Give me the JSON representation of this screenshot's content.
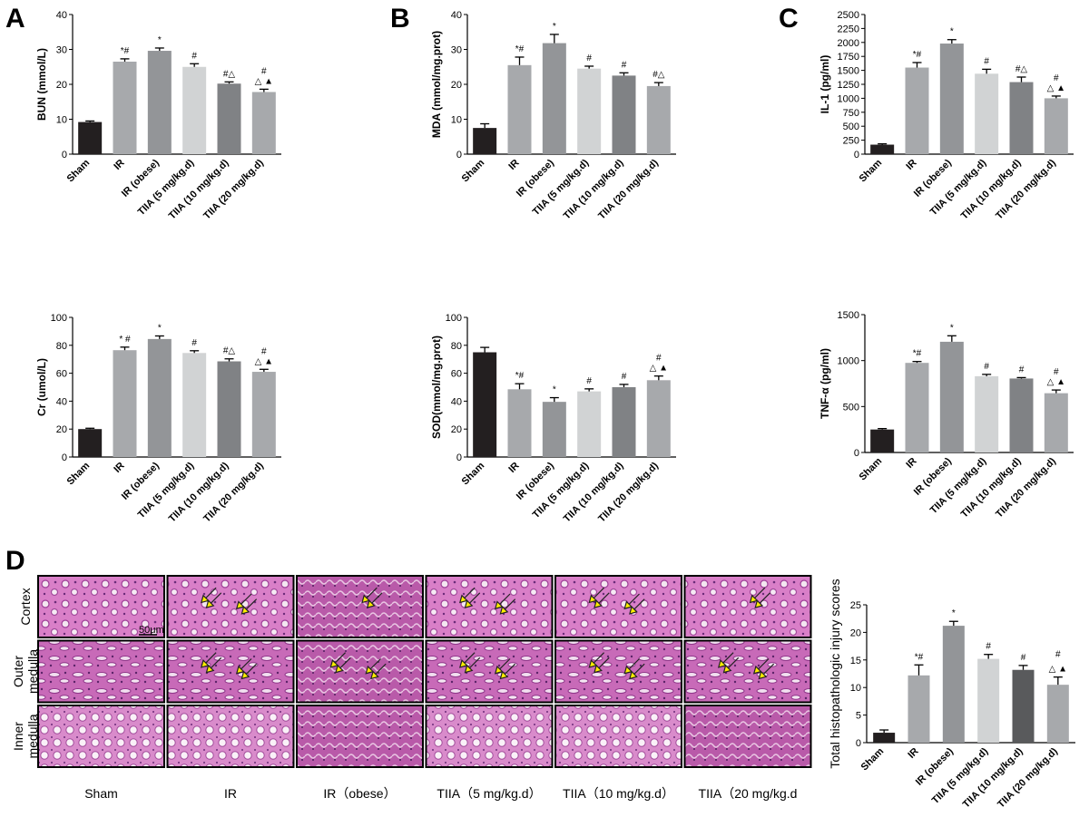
{
  "panel_labels": [
    "A",
    "B",
    "C",
    "D"
  ],
  "chart_data": [
    {
      "id": "bun",
      "type": "bar",
      "ylabel": "BUN (mmol/L)",
      "ylim": [
        0,
        40
      ],
      "yticks": [
        0,
        10,
        20,
        30,
        40
      ],
      "categories": [
        "Sham",
        "IR",
        "IR (obese)",
        "TIIA (5 mg/kg.d)",
        "TIIA (10 mg/kg.d)",
        "TIIA (20 mg/kg.d)"
      ],
      "values": [
        9.2,
        26.5,
        29.6,
        25.0,
        20.2,
        17.8
      ],
      "errors": [
        0.3,
        0.8,
        0.8,
        0.9,
        0.5,
        0.8
      ],
      "colors": [
        "#231f20",
        "#a7a9ac",
        "#939598",
        "#d1d3d4",
        "#808285",
        "#a7a9ac"
      ],
      "annotations": [
        [
          "",
          ""
        ],
        [
          "",
          "*#"
        ],
        [
          "",
          "*"
        ],
        [
          "",
          "#"
        ],
        [
          "",
          "#△"
        ],
        [
          "#",
          "△ ▲"
        ]
      ]
    },
    {
      "id": "mda",
      "type": "bar",
      "ylabel": "MDA (mmol/mg.prot)",
      "ylim": [
        0,
        40
      ],
      "yticks": [
        0,
        10,
        20,
        30,
        40
      ],
      "categories": [
        "Sham",
        "IR",
        "IR (obese)",
        "TIIA (5 mg/kg.d)",
        "TIIA (10 mg/kg.d)",
        "TIIA (20 mg/kg.d)"
      ],
      "values": [
        7.5,
        25.5,
        31.8,
        24.5,
        22.5,
        19.5
      ],
      "errors": [
        1.2,
        2.3,
        2.5,
        0.7,
        0.8,
        1.0
      ],
      "colors": [
        "#231f20",
        "#a7a9ac",
        "#939598",
        "#d1d3d4",
        "#808285",
        "#a7a9ac"
      ],
      "annotations": [
        [
          "",
          ""
        ],
        [
          "",
          "*#"
        ],
        [
          "",
          "*"
        ],
        [
          "",
          "#"
        ],
        [
          "",
          "#"
        ],
        [
          "",
          "#△"
        ]
      ]
    },
    {
      "id": "il1",
      "type": "bar",
      "ylabel": "IL-1 (pg/ml)",
      "ylim": [
        0,
        2500
      ],
      "yticks": [
        0,
        250,
        500,
        750,
        1000,
        1250,
        1500,
        1750,
        2000,
        2250,
        2500
      ],
      "categories": [
        "Sham",
        "IR",
        "IR (obese)",
        "TIIA (5 mg/kg.d)",
        "TIIA (10 mg/kg.d)",
        "TIIA (20 mg/kg.d)"
      ],
      "values": [
        170,
        1550,
        1980,
        1440,
        1290,
        1000
      ],
      "errors": [
        15,
        90,
        70,
        80,
        90,
        40
      ],
      "colors": [
        "#231f20",
        "#a7a9ac",
        "#939598",
        "#d1d3d4",
        "#808285",
        "#a7a9ac"
      ],
      "annotations": [
        [
          "",
          ""
        ],
        [
          "",
          "*#"
        ],
        [
          "",
          "*"
        ],
        [
          "",
          "#"
        ],
        [
          "",
          "#△"
        ],
        [
          "#",
          "△ ▲"
        ]
      ]
    },
    {
      "id": "cr",
      "type": "bar",
      "ylabel": "Cr (umol/L)",
      "ylim": [
        0,
        100
      ],
      "yticks": [
        0,
        20,
        40,
        60,
        80,
        100
      ],
      "categories": [
        "Sham",
        "IR",
        "IR (obese)",
        "TIIA (5 mg/kg.d)",
        "TIIA (10 mg/kg.d)",
        "TIIA (20 mg/kg.d)"
      ],
      "values": [
        20.0,
        76.5,
        84.5,
        74.5,
        68.5,
        61.0
      ],
      "errors": [
        0.6,
        2.2,
        2.2,
        1.6,
        1.8,
        1.8
      ],
      "colors": [
        "#231f20",
        "#a7a9ac",
        "#939598",
        "#d1d3d4",
        "#808285",
        "#a7a9ac"
      ],
      "annotations": [
        [
          "",
          ""
        ],
        [
          "",
          "* #"
        ],
        [
          "",
          "*"
        ],
        [
          "",
          "#"
        ],
        [
          "",
          "#△"
        ],
        [
          "#",
          "△ ▲"
        ]
      ]
    },
    {
      "id": "sod",
      "type": "bar",
      "ylabel": "SOD(mmol/mg.prot)",
      "ylim": [
        0,
        100
      ],
      "yticks": [
        0,
        20,
        40,
        60,
        80,
        100
      ],
      "categories": [
        "Sham",
        "IR",
        "IR (obese)",
        "TIIA (5 mg/kg.d)",
        "TIIA (10 mg/kg.d)",
        "TIIA (20 mg/kg.d)"
      ],
      "values": [
        75.0,
        48.5,
        39.5,
        47.0,
        50.0,
        55.0
      ],
      "errors": [
        3.5,
        4.0,
        3.0,
        1.8,
        2.0,
        3.0
      ],
      "colors": [
        "#231f20",
        "#a7a9ac",
        "#939598",
        "#d1d3d4",
        "#808285",
        "#a7a9ac"
      ],
      "annotations": [
        [
          "",
          ""
        ],
        [
          "",
          "*#"
        ],
        [
          "",
          "*"
        ],
        [
          "",
          "#"
        ],
        [
          "",
          "#"
        ],
        [
          "#",
          "△ ▲"
        ]
      ]
    },
    {
      "id": "tnf",
      "type": "bar",
      "ylabel": "TNF-α  (pg/ml)",
      "ylim": [
        0,
        1500
      ],
      "yticks": [
        0,
        500,
        1000,
        1500
      ],
      "categories": [
        "Sham",
        "IR",
        "IR (obese)",
        "TIIA (5 mg/kg.d)",
        "TIIA (10 mg/kg.d)",
        "TIIA (20 mg/kg.d)"
      ],
      "values": [
        250,
        975,
        1205,
        830,
        805,
        645
      ],
      "errors": [
        10,
        15,
        65,
        20,
        10,
        35
      ],
      "colors": [
        "#231f20",
        "#a7a9ac",
        "#939598",
        "#d1d3d4",
        "#808285",
        "#a7a9ac"
      ],
      "annotations": [
        [
          "",
          ""
        ],
        [
          "",
          "*#"
        ],
        [
          "",
          "*"
        ],
        [
          "",
          "#"
        ],
        [
          "",
          "#"
        ],
        [
          "#",
          "△ ▲"
        ]
      ]
    },
    {
      "id": "histo",
      "type": "bar",
      "ylabel": "Total histopathologic injury scores",
      "ylim": [
        0,
        25
      ],
      "yticks": [
        0,
        5,
        10,
        15,
        20,
        25
      ],
      "categories": [
        "Sham",
        "IR",
        "IR (obese)",
        "TIIA (5 mg/kg.d)",
        "TIIA (10 mg/kg.d)",
        "TIIA (20 mg/kg.d)"
      ],
      "values": [
        1.8,
        12.2,
        21.2,
        15.2,
        13.2,
        10.5
      ],
      "errors": [
        0.5,
        1.9,
        0.8,
        0.8,
        0.8,
        1.4
      ],
      "colors": [
        "#231f20",
        "#a7a9ac",
        "#939598",
        "#d1d3d4",
        "#595a5c",
        "#a7a9ac"
      ],
      "annotations": [
        [
          "",
          ""
        ],
        [
          "",
          "*#"
        ],
        [
          "",
          "*"
        ],
        [
          "",
          "#"
        ],
        [
          "",
          "#"
        ],
        [
          "#",
          "△ ▲"
        ]
      ]
    }
  ],
  "histology": {
    "row_labels": [
      [
        "Cortex"
      ],
      [
        "Outer",
        "medulla"
      ],
      [
        "Inner",
        "medulla"
      ]
    ],
    "column_labels": [
      "Sham",
      "IR",
      "IR（obese）",
      "TIIA（5 mg/kg.d）",
      "TIIA（10 mg/kg.d）",
      "TIIA（20 mg/kg.d"
    ],
    "scale_bar": "50μm",
    "arrow_color": "#ffee00",
    "arrows_per_tile": [
      [
        0,
        2,
        1,
        2,
        2,
        1
      ],
      [
        0,
        2,
        2,
        2,
        2,
        2
      ],
      [
        0,
        0,
        0,
        0,
        0,
        0
      ]
    ]
  }
}
